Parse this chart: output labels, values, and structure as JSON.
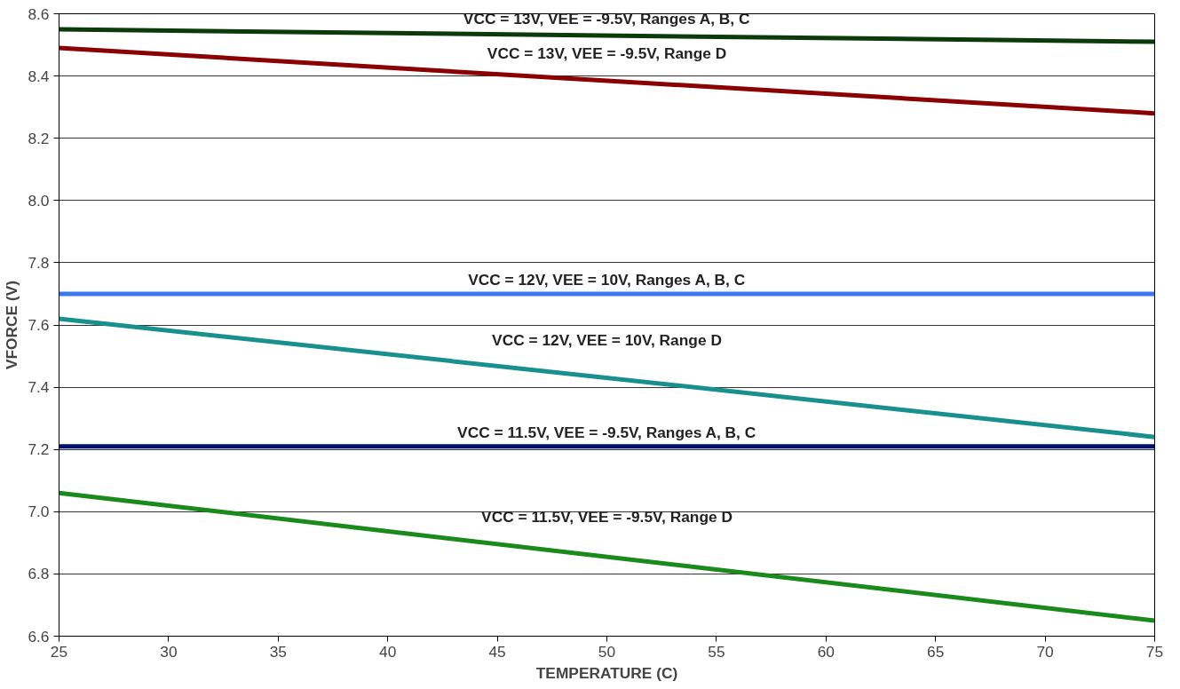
{
  "chart_data": {
    "type": "line",
    "xlabel": "TEMPERATURE (C)",
    "ylabel": "VFORCE (V)",
    "x": [
      25,
      75
    ],
    "series": [
      {
        "name": "VCC = 13V, VEE = -9.5V, Ranges A, B, C",
        "color": "#0b3b0b",
        "values": [
          8.55,
          8.51
        ]
      },
      {
        "name": "VCC = 13V, VEE = -9.5V, Range D",
        "color": "#8b0000",
        "values": [
          8.49,
          8.28
        ]
      },
      {
        "name": "VCC = 12V, VEE = 10V, Ranges A, B, C",
        "color": "#3a78f0",
        "values": [
          7.7,
          7.7
        ]
      },
      {
        "name": "VCC = 12V, VEE = 10V, Range D",
        "color": "#17908e",
        "values": [
          7.62,
          7.24
        ]
      },
      {
        "name": "VCC = 11.5V, VEE = -9.5V, Ranges A, B, C",
        "color": "#00106e",
        "values": [
          7.21,
          7.21
        ]
      },
      {
        "name": "VCC = 11.5V, VEE = -9.5V, Range D",
        "color": "#1a8a1a",
        "values": [
          7.06,
          6.65
        ]
      }
    ],
    "xlim": [
      25,
      75
    ],
    "xticks": [
      25,
      30,
      35,
      40,
      45,
      50,
      55,
      60,
      65,
      70,
      75
    ],
    "ylim": [
      6.6,
      8.6
    ],
    "yticks": [
      {
        "value": 6.6,
        "label": "6.6"
      },
      {
        "value": 6.8,
        "label": "6.8"
      },
      {
        "value": 7.0,
        "label": "7.0"
      },
      {
        "value": 7.2,
        "label": "7.2"
      },
      {
        "value": 7.4,
        "label": "7.4"
      },
      {
        "value": 7.6,
        "label": "7.6"
      },
      {
        "value": 7.8,
        "label": "7.8"
      },
      {
        "value": 8.0,
        "label": "8.0"
      },
      {
        "value": 8.2,
        "label": "8.2"
      },
      {
        "value": 8.4,
        "label": "8.4"
      },
      {
        "value": 8.6,
        "label": "8.6"
      }
    ],
    "grid": "y",
    "marker": "none",
    "line_style": "solid"
  }
}
